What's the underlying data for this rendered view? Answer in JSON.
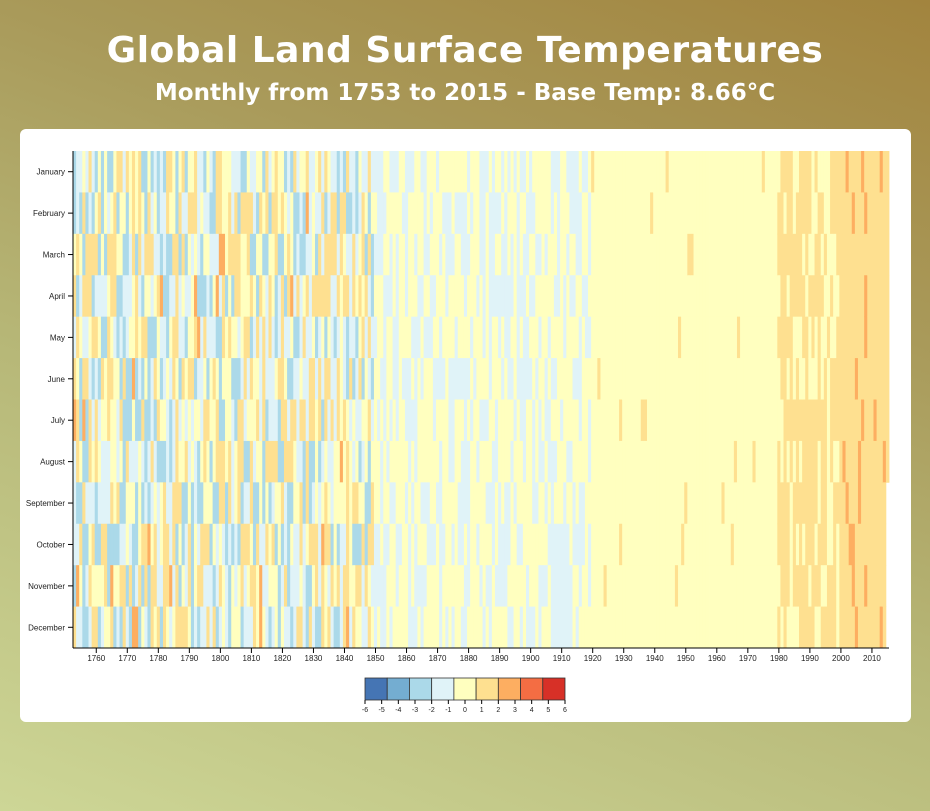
{
  "header": {
    "title": "Global Land Surface Temperatures",
    "subtitle": "Monthly from 1753 to 2015 - Base Temp: 8.66°C"
  },
  "chart_data": {
    "type": "heatmap",
    "title": "Global Land Surface Temperatures",
    "subtitle": "Monthly from 1753 to 2015 - Base Temp: 8.66°C",
    "base_temperature": 8.66,
    "x_range": [
      1753,
      2015
    ],
    "x_ticks": [
      1760,
      1770,
      1780,
      1790,
      1800,
      1810,
      1820,
      1830,
      1840,
      1850,
      1860,
      1870,
      1880,
      1890,
      1900,
      1910,
      1920,
      1930,
      1940,
      1950,
      1960,
      1970,
      1980,
      1990,
      2000,
      2010
    ],
    "y_categories": [
      "January",
      "February",
      "March",
      "April",
      "May",
      "June",
      "July",
      "August",
      "September",
      "October",
      "November",
      "December"
    ],
    "legend": {
      "ticks": [
        -6,
        -5,
        -4,
        -3,
        -2,
        -1,
        0,
        1,
        2,
        3,
        4,
        5,
        6
      ],
      "colors": [
        "#4575b4",
        "#74add1",
        "#abd9e9",
        "#e0f3f8",
        "#ffffbf",
        "#fee090",
        "#fdae61",
        "#f46d43",
        "#d73027"
      ],
      "placement": "bottom-center"
    },
    "grid": false
  }
}
